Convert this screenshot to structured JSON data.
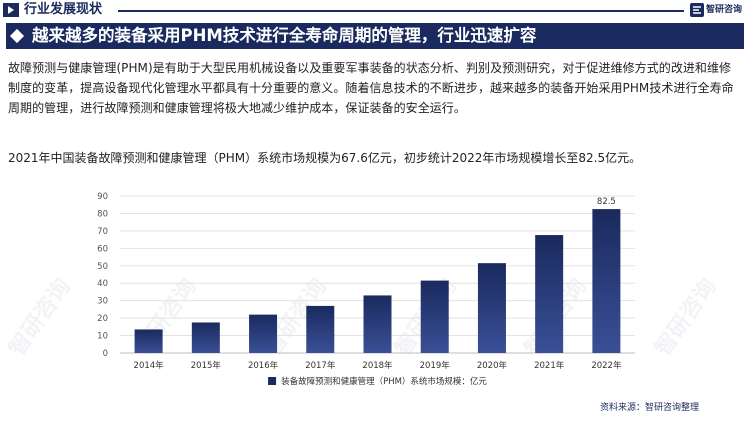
{
  "header": {
    "section_title": "行业发展现状",
    "brand_name": "智研咨询"
  },
  "banner": {
    "title": "越来越多的装备采用PHM技术进行全寿命周期的管理，行业迅速扩容"
  },
  "body": {
    "paragraph": "故障预测与健康管理(PHM)是有助于大型民用机械设备以及重要军事装备的状态分析、判别及预测研究，对于促进维修方式的改进和维修制度的变革，提高设备现代化管理水平都具有十分重要的意义。随着信息技术的不断进步，越来越多的装备开始采用PHM技术进行全寿命周期的管理，进行故障预测和健康管理将极大地减少维护成本，保证装备的安全运行。",
    "summary": "2021年中国装备故障预测和健康管理（PHM）系统市场规模为67.6亿元，初步统计2022年市场规模增长至82.5亿元。"
  },
  "chart_data": {
    "type": "bar",
    "title": "",
    "xlabel": "",
    "ylabel": "",
    "categories": [
      "2014年",
      "2015年",
      "2016年",
      "2017年",
      "2018年",
      "2019年",
      "2020年",
      "2021年",
      "2022年"
    ],
    "series": [
      {
        "name": "装备故障预测和健康管理（PHM）系统市场规模：亿元",
        "values": [
          13.5,
          17.5,
          22.0,
          27.0,
          33.0,
          41.5,
          51.5,
          67.6,
          82.5
        ]
      }
    ],
    "data_labels": [
      {
        "category": "2022年",
        "text": "82.5"
      }
    ],
    "y_ticks": [
      "0",
      "10",
      "20",
      "30",
      "40",
      "50",
      "60",
      "70",
      "80",
      "90"
    ],
    "ylim": [
      0,
      90
    ],
    "grid": true,
    "legend_position": "bottom-center",
    "bar_color": "#1a2a5e",
    "bar_gradient_bottom": "#3a4f96"
  },
  "footer": {
    "source": "资料来源：智研咨询整理"
  },
  "colors": {
    "brand": "#1a2a5e",
    "grid": "#e3e3e3"
  }
}
